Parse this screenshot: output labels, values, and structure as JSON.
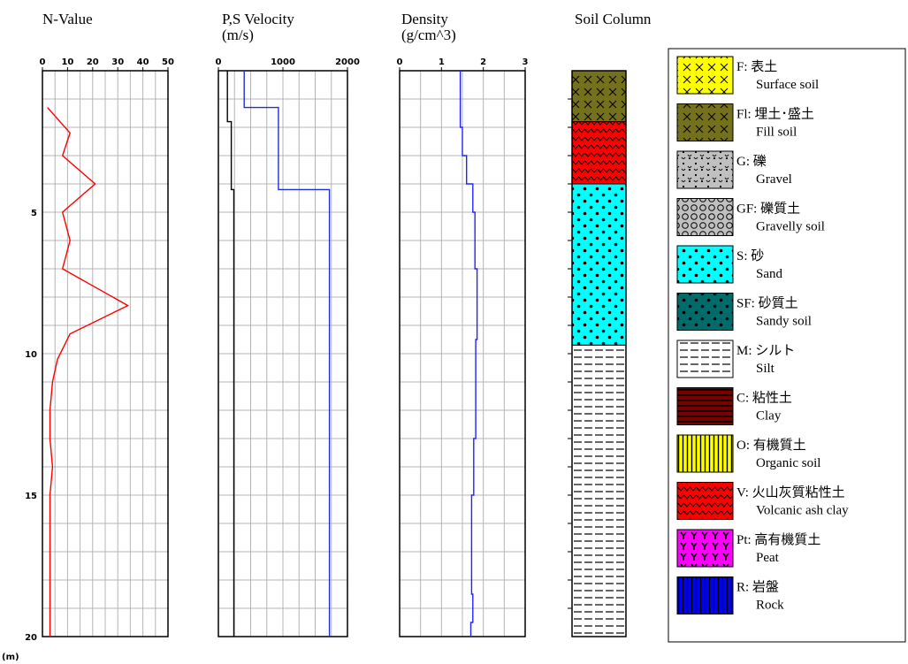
{
  "chart_data": [
    {
      "type": "line",
      "title": "N-Value",
      "depth_unit": "(m)",
      "xlim": [
        0,
        50
      ],
      "xticks": [
        "0",
        "10",
        "20",
        "30",
        "40",
        "50"
      ],
      "ylim": [
        0,
        20
      ],
      "yticks": [
        "5",
        "10",
        "15",
        "20"
      ],
      "grid": true,
      "series": [
        {
          "color": "#ff0000",
          "x": [
            2,
            11,
            8,
            21,
            8,
            11,
            8,
            34,
            11,
            6,
            4,
            3,
            3,
            4,
            3,
            3,
            3,
            3
          ],
          "y": [
            1.3,
            2.2,
            3.0,
            4.0,
            5.0,
            6.0,
            7.0,
            8.3,
            9.3,
            10.2,
            11.0,
            12.0,
            13.0,
            14.0,
            15.0,
            16.0,
            18.0,
            20.0
          ]
        }
      ]
    },
    {
      "type": "line",
      "title": "P,S Velocity",
      "subtitle": "(m/s)",
      "xlim": [
        0,
        2000
      ],
      "xticks": [
        "0",
        "1000",
        "2000"
      ],
      "ylim": [
        0,
        20
      ],
      "grid": true,
      "series": [
        {
          "color": "#000000",
          "x": [
            140,
            140,
            200,
            200,
            240,
            240
          ],
          "y": [
            0,
            1.8,
            1.8,
            4.2,
            4.2,
            20
          ]
        },
        {
          "color": "#1f2fd0",
          "x": [
            400,
            400,
            930,
            930,
            1720,
            1720
          ],
          "y": [
            0,
            1.3,
            1.3,
            4.2,
            4.2,
            20
          ]
        }
      ]
    },
    {
      "type": "line",
      "title": "Density",
      "subtitle": "(g/cm^3)",
      "xlim": [
        0,
        3
      ],
      "xticks": [
        "0",
        "1",
        "2",
        "3"
      ],
      "ylim": [
        0,
        20
      ],
      "grid": true,
      "series": [
        {
          "color": "#2222ff",
          "x": [
            1.45,
            1.45,
            1.5,
            1.5,
            1.6,
            1.6,
            1.75,
            1.75,
            1.8,
            1.8,
            1.85,
            1.85,
            1.82,
            1.82,
            1.77,
            1.77,
            1.72,
            1.72,
            1.75,
            1.75,
            1.7,
            1.7
          ],
          "y": [
            0,
            2.0,
            2.0,
            3.0,
            3.0,
            4.0,
            4.0,
            5.0,
            5.0,
            7.0,
            7.0,
            9.5,
            9.5,
            13.0,
            13.0,
            15.0,
            15.0,
            18.5,
            18.5,
            19.5,
            19.5,
            20
          ]
        }
      ]
    },
    {
      "type": "table",
      "title": "Soil Column",
      "layers": [
        {
          "code": "Fl",
          "from": 0,
          "to": 1.8
        },
        {
          "code": "V",
          "from": 1.8,
          "to": 4.0
        },
        {
          "code": "S",
          "from": 4.0,
          "to": 9.7
        },
        {
          "code": "M",
          "from": 9.7,
          "to": 20
        }
      ],
      "legend": [
        {
          "code": "F",
          "label": "F: 表土",
          "english": "Surface soil",
          "pattern": "x-marks",
          "color": "#ffff00"
        },
        {
          "code": "Fl",
          "label": "Fl: 埋土･盛土",
          "english": "Fill soil",
          "pattern": "x-marks",
          "color": "#75701c"
        },
        {
          "code": "G",
          "label": "G: 礫",
          "english": "Gravel",
          "pattern": "gravel",
          "color": "#c0c0c0"
        },
        {
          "code": "GF",
          "label": "GF: 礫質土",
          "english": "Gravelly soil",
          "pattern": "circles",
          "color": "#c0c0c0"
        },
        {
          "code": "S",
          "label": "S: 砂",
          "english": "Sand",
          "pattern": "dots",
          "color": "#00ffff"
        },
        {
          "code": "SF",
          "label": "SF: 砂質土",
          "english": "Sandy soil",
          "pattern": "dots",
          "color": "#006b6b"
        },
        {
          "code": "M",
          "label": "M: シルト",
          "english": "Silt",
          "pattern": "dashes",
          "color": "#ffffff"
        },
        {
          "code": "C",
          "label": "C: 粘性土",
          "english": "Clay",
          "pattern": "h-lines",
          "color": "#7a0000"
        },
        {
          "code": "O",
          "label": "O: 有機質土",
          "english": "Organic soil",
          "pattern": "v-lines",
          "color": "#ffff00"
        },
        {
          "code": "V",
          "label": "V: 火山灰質粘性土",
          "english": "Volcanic ash clay",
          "pattern": "zigzag",
          "color": "#ff0000"
        },
        {
          "code": "Pt",
          "label": "Pt: 高有機質土",
          "english": "Peat",
          "pattern": "y-marks",
          "color": "#ff00ff"
        },
        {
          "code": "R",
          "label": "R: 岩盤",
          "english": "Rock",
          "pattern": "v-lines",
          "color": "#0000ff"
        }
      ]
    }
  ]
}
